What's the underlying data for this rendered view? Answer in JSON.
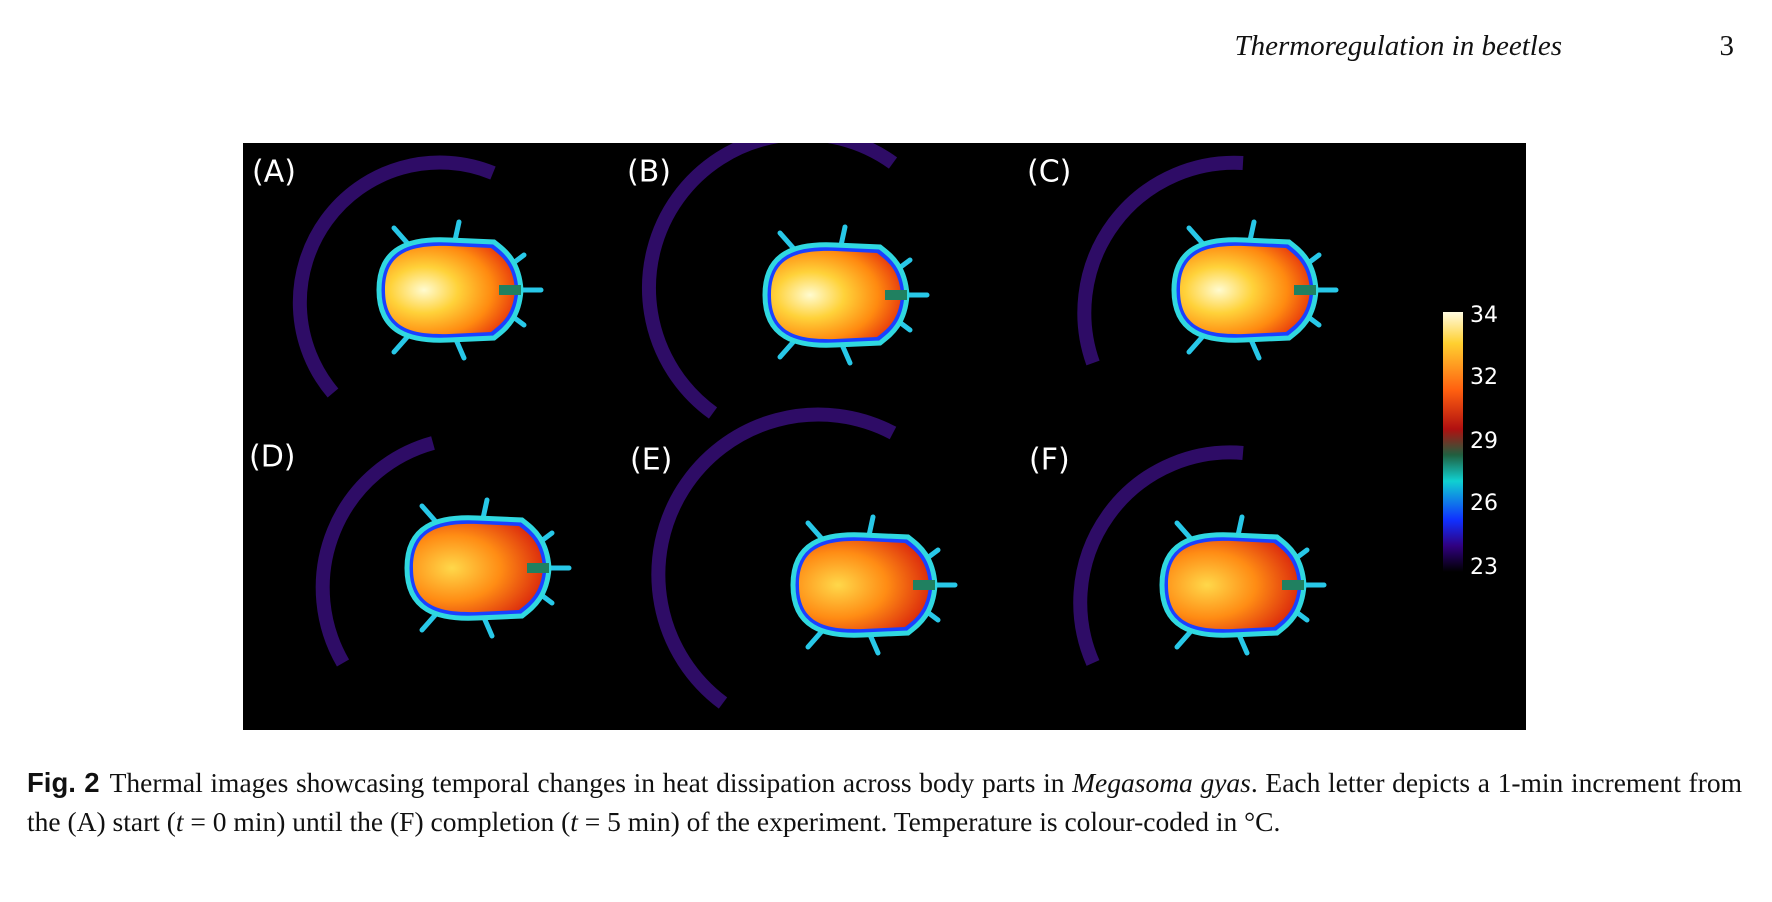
{
  "header": {
    "title": "Thermoregulation in beetles",
    "page": "3"
  },
  "figure": {
    "panels": [
      "(A)",
      "(B)",
      "(C)",
      "(D)",
      "(E)",
      "(F)"
    ],
    "colorbar": {
      "ticks": [
        "34",
        "32",
        "29",
        "26",
        "23"
      ]
    }
  },
  "caption": {
    "label": "Fig. 2",
    "parts": [
      "Thermal images showcasing temporal changes in heat dissipation across body parts in ",
      "Megasoma gyas",
      ". Each letter depicts a 1-min increment from the (A) start (",
      "t",
      " = 0 min) until the (F) completion (",
      "t",
      " = 5 min) of the experiment. Temperature is colour-coded in °C."
    ]
  }
}
